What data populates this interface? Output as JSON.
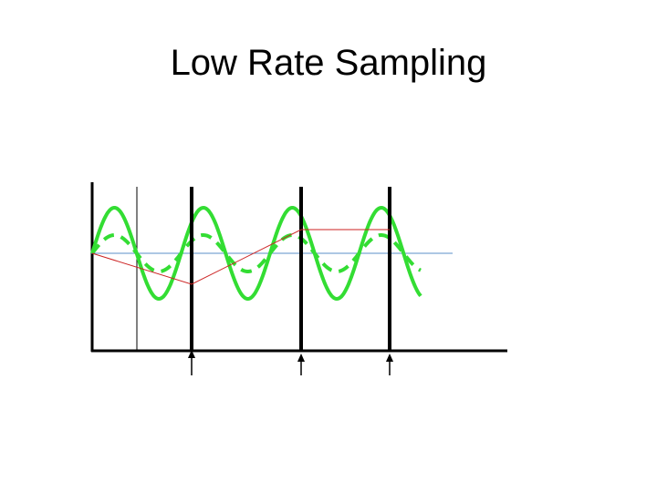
{
  "slide": {
    "title": "Low Rate Sampling"
  },
  "colors": {
    "signal": "#33dd33",
    "reconstruction": "#cc2222",
    "baseline": "#5b8fc8",
    "axis": "#000000"
  }
}
